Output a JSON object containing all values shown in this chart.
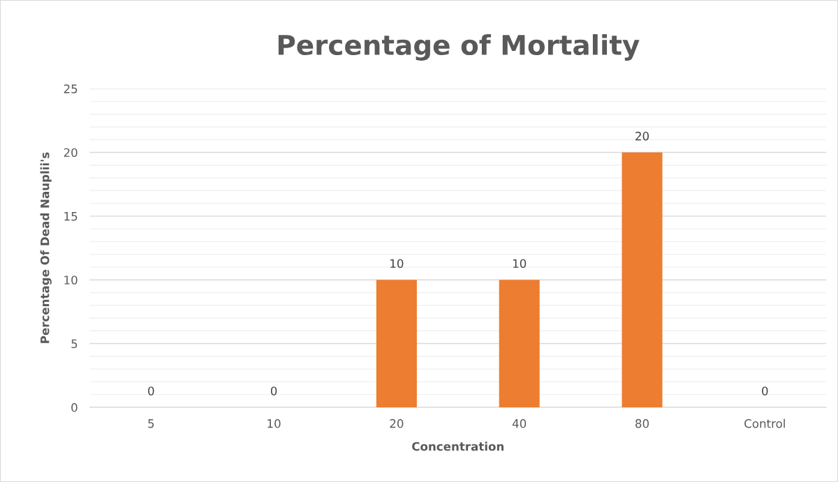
{
  "chart_data": {
    "type": "bar",
    "title": "Percentage of Mortality",
    "xlabel": "Concentration",
    "ylabel": "Percentage Of Dead Nauplii's",
    "categories": [
      "5",
      "10",
      "20",
      "40",
      "80",
      "Control"
    ],
    "values": [
      0,
      0,
      10,
      10,
      20,
      0
    ],
    "color": "#ed7d31",
    "ylim": [
      0,
      25
    ],
    "yticks": [
      0,
      {
        "value": 1,
        "label": null
      },
      {
        "value": 2,
        "label": null
      },
      {
        "value": 3,
        "label": null
      },
      {
        "value": 4,
        "label": null
      },
      5,
      {
        "value": 6,
        "label": null
      },
      {
        "value": 7,
        "label": null
      },
      {
        "value": 8,
        "label": null
      },
      {
        "value": 9,
        "label": null
      },
      10,
      {
        "value": 11,
        "label": null
      },
      {
        "value": 12,
        "label": null
      },
      {
        "value": 13,
        "label": null
      },
      {
        "value": 14,
        "label": null
      },
      15,
      {
        "value": 16,
        "label": null
      },
      {
        "value": 17,
        "label": null
      },
      {
        "value": 18,
        "label": null
      },
      {
        "value": 19,
        "label": null
      },
      20,
      {
        "value": 21,
        "label": null
      },
      {
        "value": 22,
        "label": null
      },
      {
        "value": 23,
        "label": null
      },
      {
        "value": 24,
        "label": null
      },
      25
    ],
    "grid": "y",
    "data_labels": true,
    "legend": false
  }
}
